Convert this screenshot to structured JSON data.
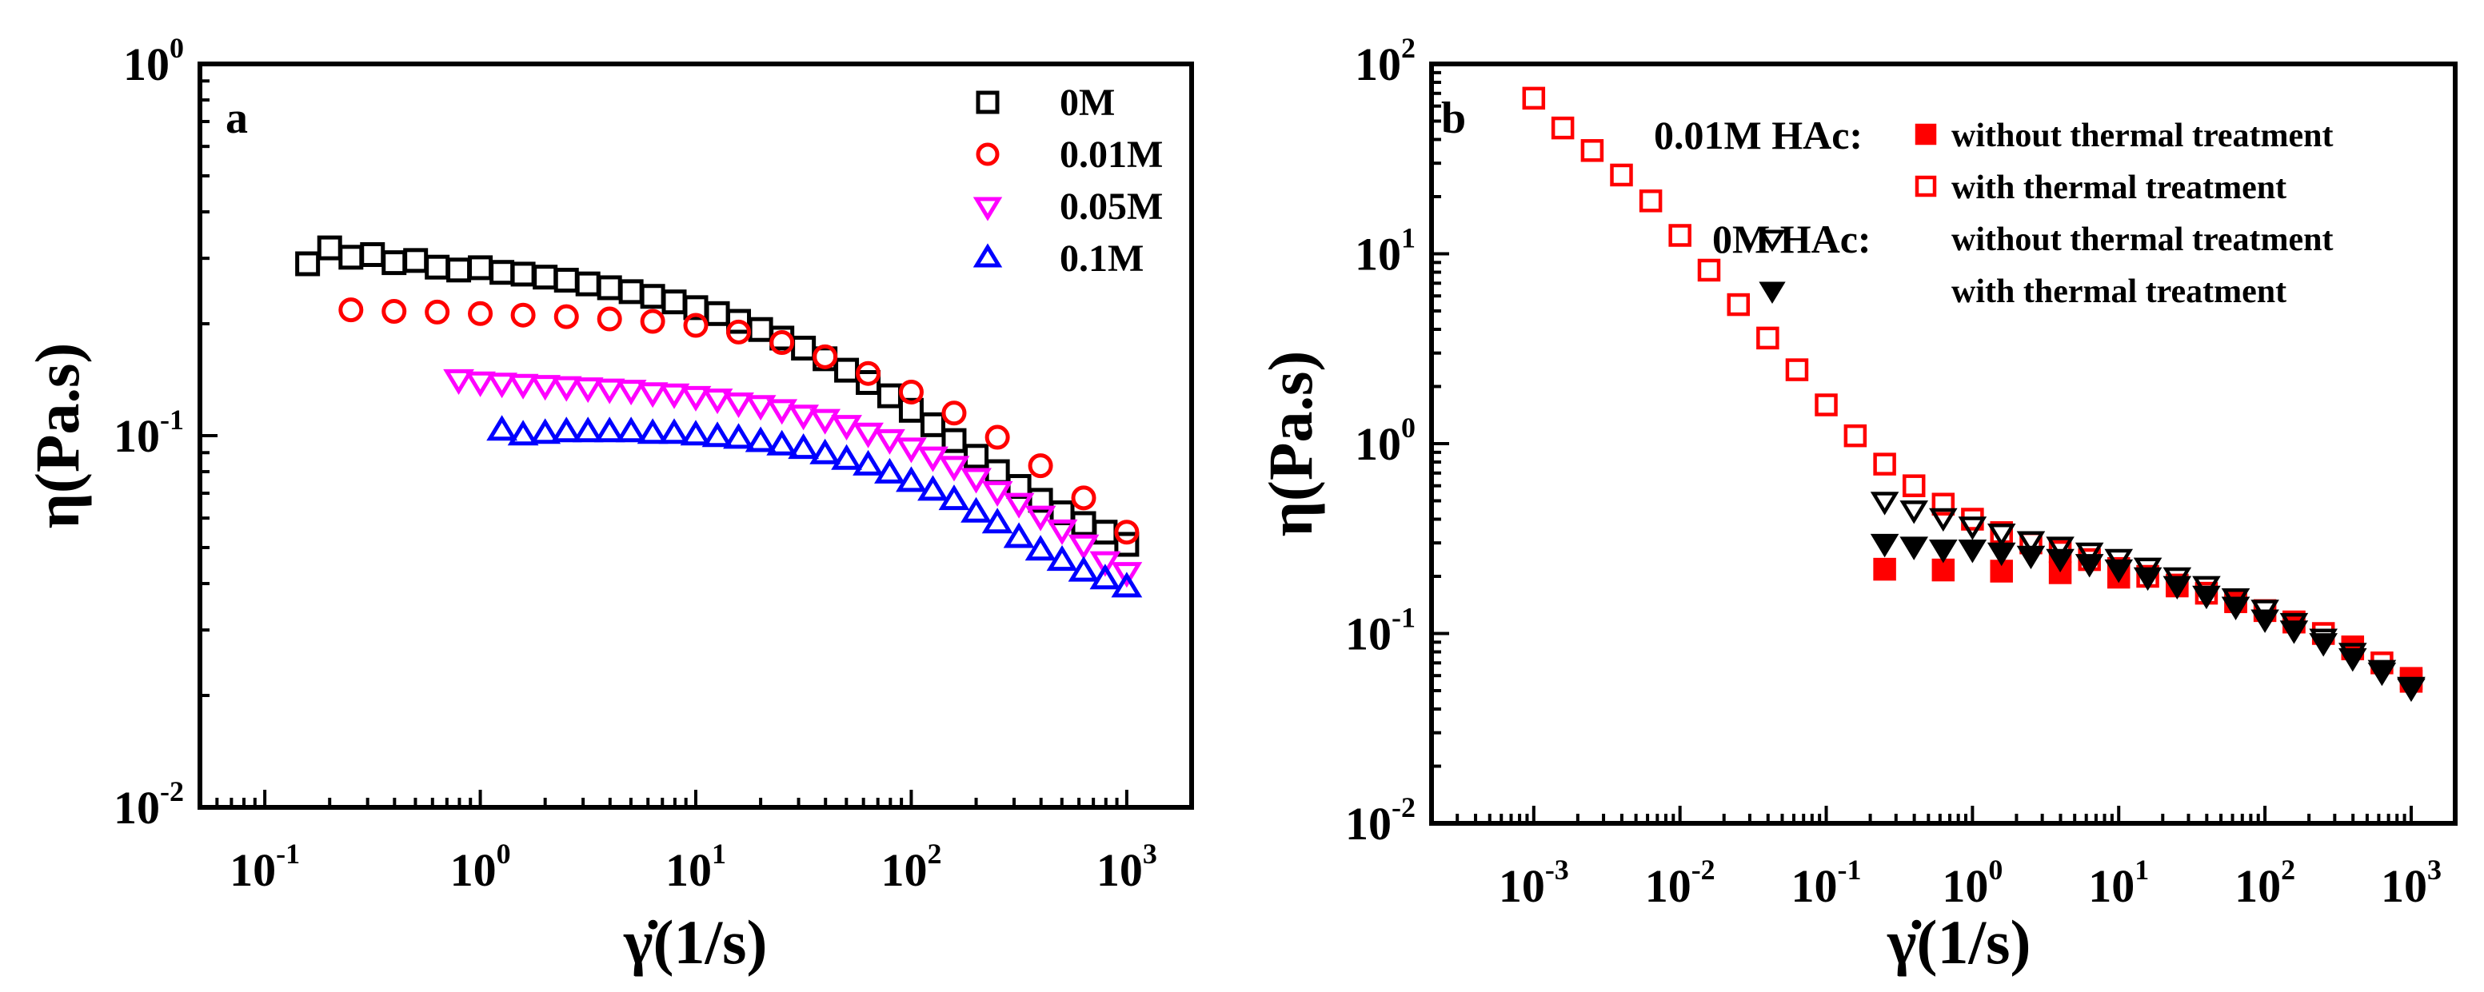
{
  "chart_data": [
    {
      "panel": "a",
      "type": "scatter",
      "xlabel": "γ̇(1/s)",
      "ylabel": "η(Pa.s)",
      "xscale": "log",
      "yscale": "log",
      "xlim": [
        0.05,
        2000
      ],
      "ylim": [
        0.01,
        1
      ],
      "x_ticks": [
        {
          "value": 0.1,
          "mantissa": "10",
          "exponent": "-1"
        },
        {
          "value": 1,
          "mantissa": "10",
          "exponent": "0"
        },
        {
          "value": 10,
          "mantissa": "10",
          "exponent": "1"
        },
        {
          "value": 100,
          "mantissa": "10",
          "exponent": "2"
        },
        {
          "value": 1000,
          "mantissa": "10",
          "exponent": "3"
        }
      ],
      "y_ticks": [
        {
          "value": 0.01,
          "mantissa": "10",
          "exponent": "-2"
        },
        {
          "value": 0.1,
          "mantissa": "10",
          "exponent": "-1"
        },
        {
          "value": 1,
          "mantissa": "10",
          "exponent": "0"
        }
      ],
      "legend": "top-right",
      "grid": false,
      "series": [
        {
          "name": "0M",
          "marker": "square-open",
          "color": "#000000",
          "x": [
            0.158,
            0.2,
            0.251,
            0.316,
            0.398,
            0.501,
            0.631,
            0.794,
            1.0,
            1.26,
            1.58,
            2.0,
            2.51,
            3.16,
            3.98,
            5.01,
            6.31,
            7.94,
            10.0,
            12.6,
            15.8,
            20.0,
            25.1,
            31.6,
            39.8,
            50.1,
            63.1,
            79.4,
            100,
            126,
            158,
            200,
            251,
            316,
            398,
            501,
            631,
            794,
            1000
          ],
          "y": [
            0.29,
            0.32,
            0.302,
            0.307,
            0.292,
            0.296,
            0.284,
            0.279,
            0.283,
            0.275,
            0.272,
            0.267,
            0.262,
            0.256,
            0.25,
            0.244,
            0.237,
            0.229,
            0.221,
            0.213,
            0.203,
            0.193,
            0.183,
            0.172,
            0.161,
            0.15,
            0.139,
            0.128,
            0.117,
            0.107,
            0.097,
            0.088,
            0.08,
            0.073,
            0.067,
            0.062,
            0.058,
            0.055,
            0.051
          ]
        },
        {
          "name": "0.01M",
          "marker": "circle-open",
          "color": "#ff0000",
          "x": [
            0.251,
            0.398,
            0.631,
            1.0,
            1.58,
            2.51,
            3.98,
            6.31,
            10.0,
            15.8,
            25.1,
            39.8,
            63.1,
            100,
            158,
            251,
            398,
            631,
            1000
          ],
          "y": [
            0.218,
            0.216,
            0.215,
            0.213,
            0.211,
            0.209,
            0.206,
            0.203,
            0.198,
            0.19,
            0.178,
            0.163,
            0.147,
            0.131,
            0.115,
            0.099,
            0.083,
            0.068,
            0.055
          ]
        },
        {
          "name": "0.05M",
          "marker": "triangle-down-open",
          "color": "#ff00ff",
          "x": [
            0.794,
            1.0,
            1.26,
            1.58,
            2.0,
            2.51,
            3.16,
            3.98,
            5.01,
            6.31,
            7.94,
            10.0,
            12.6,
            15.8,
            20.0,
            25.1,
            31.6,
            39.8,
            50.1,
            63.1,
            79.4,
            100,
            126,
            158,
            200,
            251,
            316,
            398,
            501,
            631,
            794,
            1000
          ],
          "y": [
            0.142,
            0.14,
            0.139,
            0.138,
            0.137,
            0.136,
            0.135,
            0.134,
            0.133,
            0.131,
            0.13,
            0.128,
            0.126,
            0.123,
            0.121,
            0.118,
            0.114,
            0.111,
            0.107,
            0.102,
            0.098,
            0.093,
            0.088,
            0.083,
            0.077,
            0.071,
            0.066,
            0.061,
            0.056,
            0.051,
            0.046,
            0.043
          ]
        },
        {
          "name": "0.1M",
          "marker": "triangle-up-open",
          "color": "#0000ff",
          "x": [
            1.26,
            1.58,
            2.0,
            2.51,
            3.16,
            3.98,
            5.01,
            6.31,
            7.94,
            10.0,
            12.6,
            15.8,
            20.0,
            25.1,
            31.6,
            39.8,
            50.1,
            63.1,
            79.4,
            100,
            126,
            158,
            200,
            251,
            316,
            398,
            501,
            631,
            794,
            1000
          ],
          "y": [
            0.103,
            0.1,
            0.101,
            0.102,
            0.102,
            0.102,
            0.102,
            0.101,
            0.101,
            0.1,
            0.099,
            0.098,
            0.096,
            0.094,
            0.092,
            0.089,
            0.086,
            0.083,
            0.079,
            0.075,
            0.071,
            0.067,
            0.062,
            0.058,
            0.053,
            0.049,
            0.046,
            0.043,
            0.041,
            0.039
          ]
        }
      ]
    },
    {
      "panel": "b",
      "type": "scatter",
      "xlabel": "γ̇(1/s)",
      "ylabel": "η(Pa.s)",
      "xscale": "log",
      "yscale": "log",
      "xlim": [
        0.0002,
        2000
      ],
      "ylim": [
        0.01,
        100
      ],
      "x_ticks": [
        {
          "value": 0.001,
          "mantissa": "10",
          "exponent": "-3"
        },
        {
          "value": 0.01,
          "mantissa": "10",
          "exponent": "-2"
        },
        {
          "value": 0.1,
          "mantissa": "10",
          "exponent": "-1"
        },
        {
          "value": 1,
          "mantissa": "10",
          "exponent": "0"
        },
        {
          "value": 10,
          "mantissa": "10",
          "exponent": "1"
        },
        {
          "value": 100,
          "mantissa": "10",
          "exponent": "2"
        },
        {
          "value": 1000,
          "mantissa": "10",
          "exponent": "3"
        }
      ],
      "y_ticks": [
        {
          "value": 0.01,
          "mantissa": "10",
          "exponent": "-2"
        },
        {
          "value": 0.1,
          "mantissa": "10",
          "exponent": "-1"
        },
        {
          "value": 1,
          "mantissa": "10",
          "exponent": "0"
        },
        {
          "value": 10,
          "mantissa": "10",
          "exponent": "1"
        },
        {
          "value": 100,
          "mantissa": "10",
          "exponent": "2"
        }
      ],
      "legend": "top-right",
      "legend_groups": [
        {
          "title": "0.01M HAc:"
        },
        {
          "title": "0M HAc:"
        }
      ],
      "grid": false,
      "series": [
        {
          "name": "without thermal treatment",
          "group": "0.01M HAc:",
          "marker": "square-filled",
          "color": "#ff0000",
          "x": [
            0.251,
            0.631,
            1.58,
            3.98,
            10.0,
            25.1,
            63.1,
            158,
            398,
            1000
          ],
          "y": [
            0.218,
            0.216,
            0.213,
            0.209,
            0.198,
            0.178,
            0.147,
            0.115,
            0.083,
            0.056
          ]
        },
        {
          "name": "with thermal treatment",
          "group": "0.01M HAc:",
          "marker": "square-open",
          "color": "#ff0000",
          "x": [
            0.001,
            0.00158,
            0.00251,
            0.00398,
            0.00631,
            0.01,
            0.0158,
            0.0251,
            0.0398,
            0.0631,
            0.1,
            0.158,
            0.251,
            0.398,
            0.631,
            1.0,
            1.58,
            2.51,
            3.98,
            6.31,
            10.0,
            15.8,
            25.1,
            39.8,
            63.1,
            100,
            158,
            251,
            398,
            631,
            1000
          ],
          "y": [
            66,
            46,
            35,
            26,
            19,
            12.5,
            8.2,
            5.4,
            3.6,
            2.45,
            1.6,
            1.1,
            0.78,
            0.6,
            0.48,
            0.4,
            0.34,
            0.3,
            0.27,
            0.245,
            0.22,
            0.2,
            0.18,
            0.163,
            0.148,
            0.132,
            0.115,
            0.1,
            0.085,
            0.07,
            0.058
          ]
        },
        {
          "name": "without thermal treatment",
          "group": "0M HAc:",
          "marker": "triangle-down-open",
          "color": "#000000",
          "x": [
            0.251,
            0.398,
            0.631,
            1.0,
            1.58,
            2.51,
            3.98,
            6.31,
            10.0,
            15.8,
            25.1,
            39.8,
            63.1,
            100,
            158,
            251,
            398,
            631,
            1000
          ],
          "y": [
            0.5,
            0.45,
            0.41,
            0.37,
            0.34,
            0.31,
            0.29,
            0.27,
            0.25,
            0.225,
            0.2,
            0.18,
            0.155,
            0.135,
            0.115,
            0.095,
            0.08,
            0.065,
            0.053
          ]
        },
        {
          "name": "with thermal treatment",
          "group": "0M HAc:",
          "marker": "triangle-down-filled",
          "color": "#000000",
          "x": [
            0.251,
            0.398,
            0.631,
            1.0,
            1.58,
            2.51,
            3.98,
            6.31,
            10.0,
            15.8,
            25.1,
            39.8,
            63.1,
            100,
            158,
            251,
            398,
            631,
            1000
          ],
          "y": [
            0.3,
            0.29,
            0.28,
            0.28,
            0.27,
            0.26,
            0.25,
            0.235,
            0.22,
            0.2,
            0.18,
            0.16,
            0.14,
            0.12,
            0.105,
            0.09,
            0.075,
            0.063,
            0.052
          ]
        }
      ]
    }
  ]
}
